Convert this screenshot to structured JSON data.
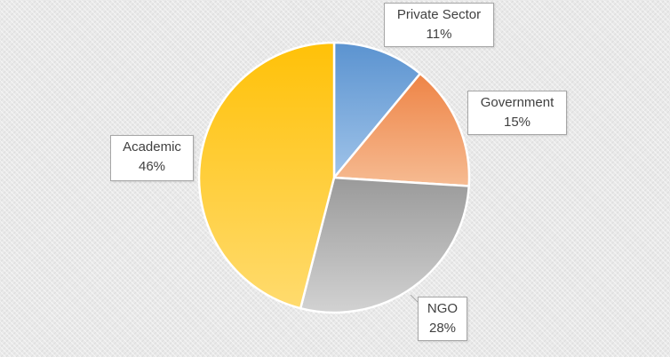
{
  "chart_data": {
    "type": "pie",
    "title": "",
    "slices": [
      {
        "label": "Private Sector",
        "value": 11,
        "value_text": "11%",
        "color": "#7aa9dc",
        "color_light": "#9fc3e9",
        "color_dark": "#5b93d0"
      },
      {
        "label": "Government",
        "value": 15,
        "value_text": "15%",
        "color": "#f2a06e",
        "color_light": "#f6bb92",
        "color_dark": "#ee8446"
      },
      {
        "label": "NGO",
        "value": 28,
        "value_text": "28%",
        "color": "#b8b8b8",
        "color_light": "#d2d2d2",
        "color_dark": "#9a9a9a"
      },
      {
        "label": "Academic",
        "value": 46,
        "value_text": "46%",
        "color": "#ffcf3f",
        "color_light": "#ffdb6e",
        "color_dark": "#ffc108"
      }
    ],
    "start_angle_deg": 0,
    "direction": "clockwise",
    "legend": "none",
    "data_labels": "callouts"
  }
}
